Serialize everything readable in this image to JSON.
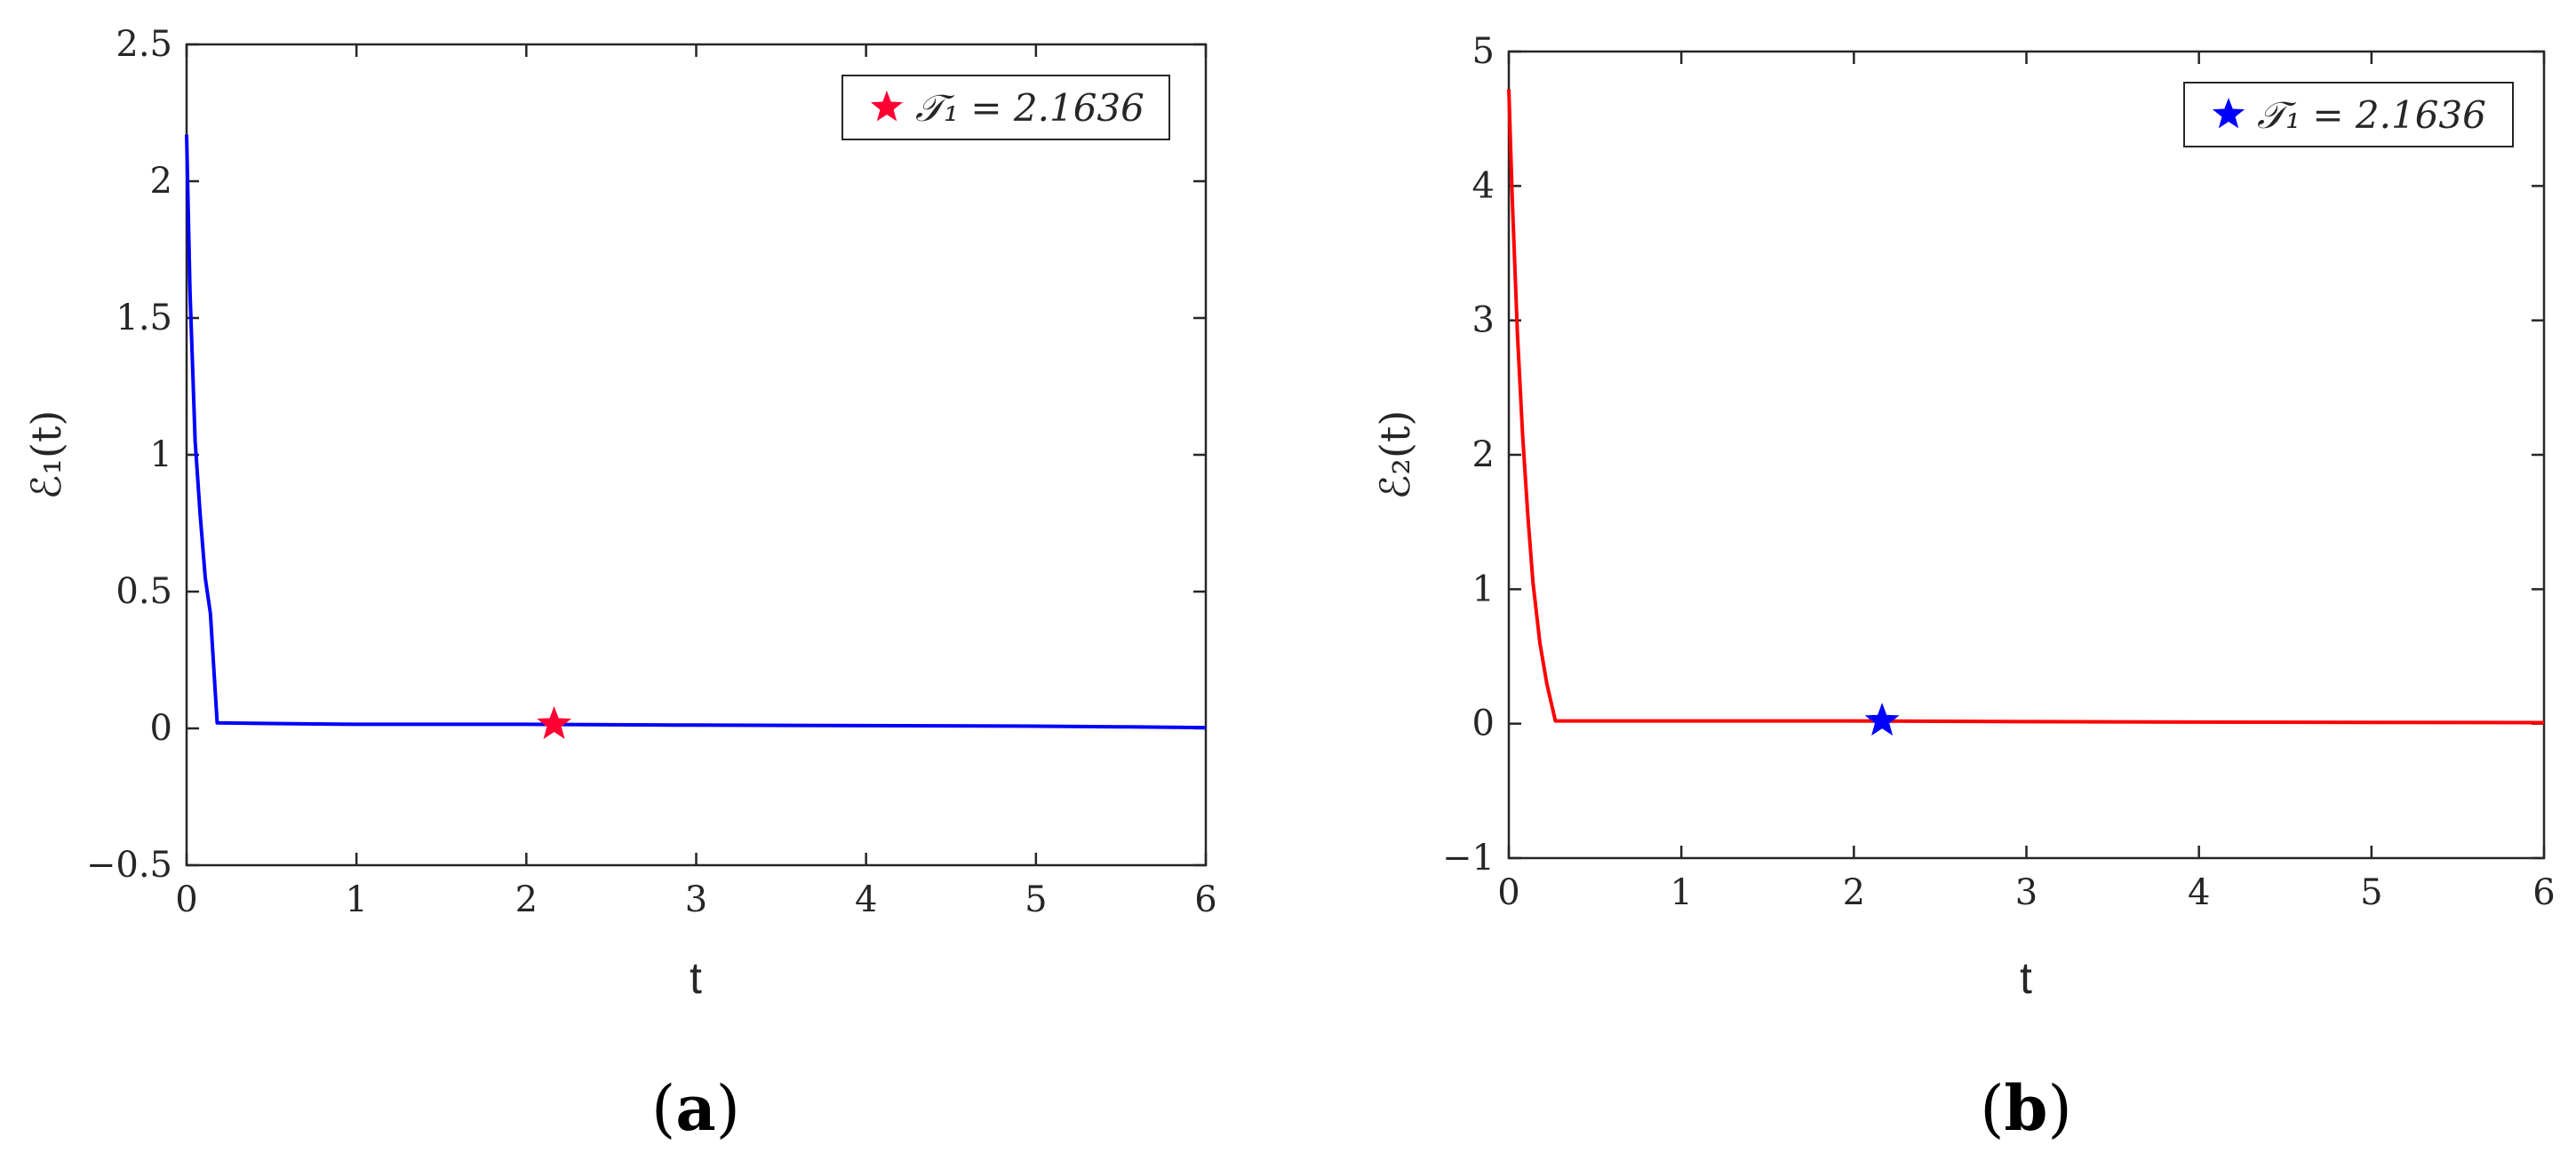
{
  "chart_data": [
    {
      "type": "line",
      "panel_label": "(a)",
      "panel_letter": "a",
      "xlabel": "t",
      "ylabel": "ℰ₁(t)",
      "xlim": [
        0,
        6
      ],
      "ylim": [
        -0.5,
        2.5
      ],
      "xticks": [
        0,
        1,
        2,
        3,
        4,
        5,
        6
      ],
      "xtick_labels": [
        "0",
        "1",
        "2",
        "3",
        "4",
        "5",
        "6"
      ],
      "yticks": [
        -0.5,
        0,
        0.5,
        1,
        1.5,
        2,
        2.5
      ],
      "ytick_labels": [
        "−0.5",
        "0",
        "0.5",
        "1",
        "1.5",
        "2",
        "2.5"
      ],
      "grid": false,
      "legend_position": "top-right",
      "series": [
        {
          "color": "#0000ff",
          "x": [
            0,
            0.02,
            0.05,
            0.08,
            0.11,
            0.14,
            0.18,
            0.5,
            1,
            2,
            3,
            4,
            5,
            5.5,
            6
          ],
          "y": [
            2.17,
            1.6,
            1.05,
            0.78,
            0.55,
            0.42,
            0.02,
            0.018,
            0.015,
            0.015,
            0.012,
            0.01,
            0.008,
            0.006,
            0.003
          ]
        }
      ],
      "marker": {
        "x": 2.1636,
        "y": 0.015,
        "color": "#ff0033",
        "symbol": "star"
      },
      "legend": {
        "text": "𝒯₁ = 2.1636",
        "marker_color": "#ff0033"
      }
    },
    {
      "type": "line",
      "panel_label": "(b)",
      "panel_letter": "b",
      "xlabel": "t",
      "ylabel": "ℰ₂(t)",
      "xlim": [
        0,
        6
      ],
      "ylim": [
        -1,
        5
      ],
      "xticks": [
        0,
        1,
        2,
        3,
        4,
        5,
        6
      ],
      "xtick_labels": [
        "0",
        "1",
        "2",
        "3",
        "4",
        "5",
        "6"
      ],
      "yticks": [
        -1,
        0,
        1,
        2,
        3,
        4,
        5
      ],
      "ytick_labels": [
        "−1",
        "0",
        "1",
        "2",
        "3",
        "4",
        "5"
      ],
      "grid": false,
      "legend_position": "top-right",
      "series": [
        {
          "color": "#ff0000",
          "x": [
            0,
            0.02,
            0.05,
            0.08,
            0.11,
            0.14,
            0.18,
            0.22,
            0.27,
            1,
            2,
            3,
            4,
            5,
            6
          ],
          "y": [
            4.72,
            3.9,
            2.9,
            2.15,
            1.55,
            1.05,
            0.6,
            0.3,
            0.02,
            0.02,
            0.02,
            0.015,
            0.012,
            0.01,
            0.008
          ]
        }
      ],
      "marker": {
        "x": 2.1636,
        "y": 0.02,
        "color": "#0000ff",
        "symbol": "star"
      },
      "legend": {
        "text": "𝒯₁ = 2.1636",
        "marker_color": "#0000ff"
      }
    }
  ]
}
